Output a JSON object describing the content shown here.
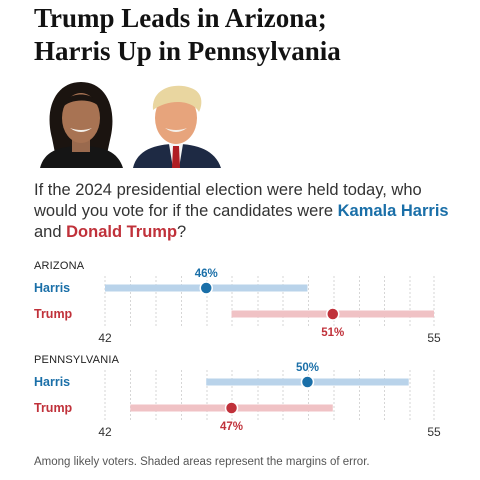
{
  "headline": {
    "line1": "Trump Leads in Arizona;",
    "line2": "Harris Up in Pennsylvania"
  },
  "question": {
    "prefix": "If the 2024 presidential election were held today, who would you vote for if the candidates were",
    "harris_name": "Kamala Harris",
    "and": "and",
    "trump_name": "Donald Trump",
    "suffix": "?"
  },
  "footnote": "Among likely voters. Shaded areas represent the margins of error.",
  "colors": {
    "harris": "#1a6fa8",
    "harris_band": "#b9d3ea",
    "trump": "#c0313a",
    "trump_band": "#f0c2c5"
  },
  "chart_data": [
    {
      "type": "dot-range",
      "title": "ARIZONA",
      "xlim": [
        42,
        55
      ],
      "ticks": [
        42,
        55
      ],
      "tick_labels": [
        "42",
        "55"
      ],
      "series": [
        {
          "name": "Harris",
          "value": 46,
          "label": "46%",
          "moe_low": 42,
          "moe_high": 50
        },
        {
          "name": "Trump",
          "value": 51,
          "label": "51%",
          "moe_low": 47,
          "moe_high": 55
        }
      ]
    },
    {
      "type": "dot-range",
      "title": "PENNSYLVANIA",
      "xlim": [
        42,
        55
      ],
      "ticks": [
        42,
        55
      ],
      "tick_labels": [
        "42",
        "55"
      ],
      "series": [
        {
          "name": "Harris",
          "value": 50,
          "label": "50%",
          "moe_low": 46,
          "moe_high": 54
        },
        {
          "name": "Trump",
          "value": 47,
          "label": "47%",
          "moe_low": 43,
          "moe_high": 51
        }
      ]
    }
  ]
}
